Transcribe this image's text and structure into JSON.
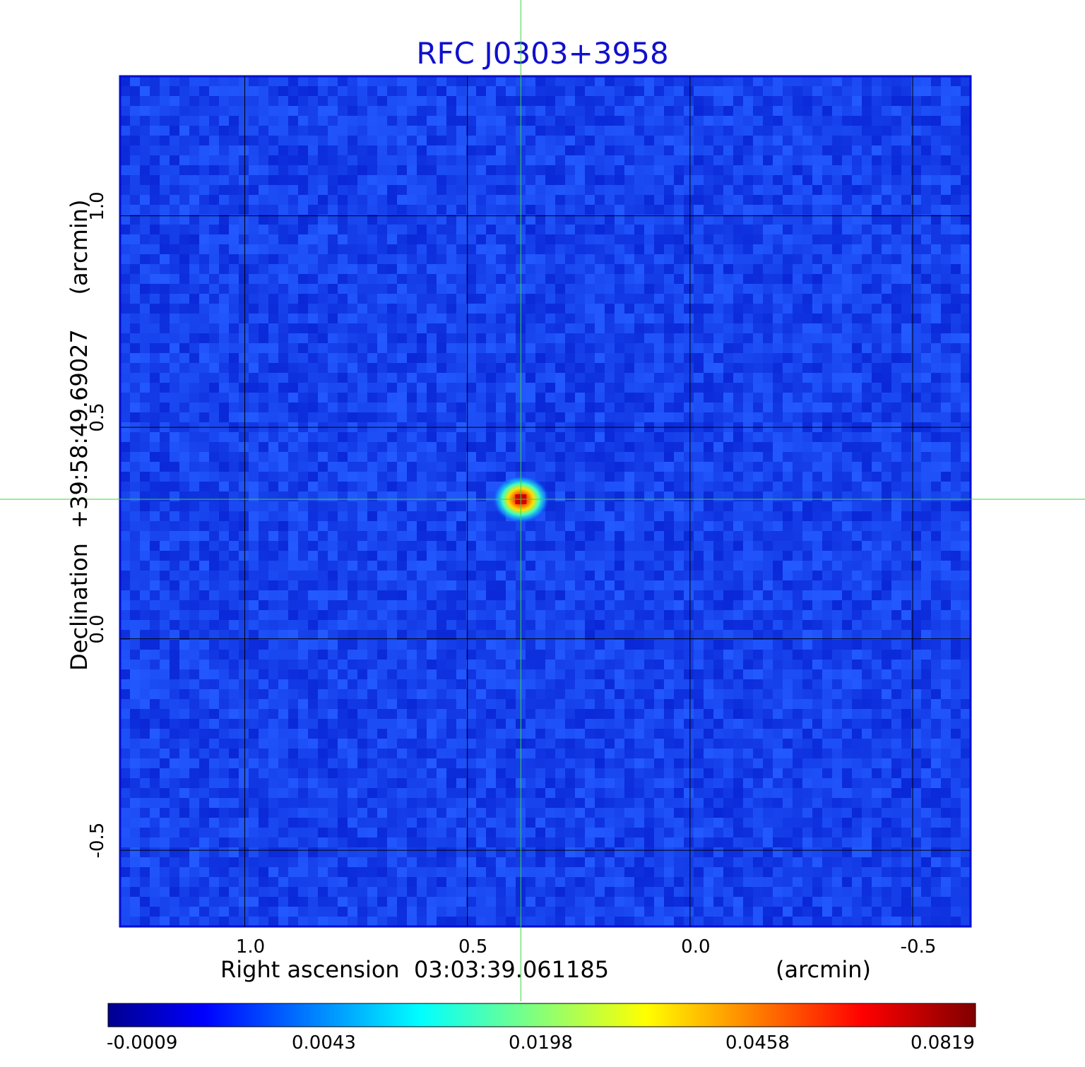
{
  "chart_data": {
    "type": "heatmap",
    "title": "RFC J0303+3958",
    "xlabel": "Right ascension  03:03:39.061185",
    "xunit": "(arcmin)",
    "ylabel": "Declination  +39:58:49.69027",
    "yunit": "(arcmin)",
    "xlim": [
      1.28,
      -0.63
    ],
    "ylim": [
      -0.68,
      1.33
    ],
    "x_ticks": [
      "1.0",
      "0.5",
      "0.0",
      "-0.5"
    ],
    "x_tick_values": [
      1.0,
      0.5,
      0.0,
      -0.5
    ],
    "y_ticks": [
      "-0.5",
      "0.0",
      "0.5",
      "1.0"
    ],
    "y_tick_values": [
      -0.5,
      0.0,
      0.5,
      1.0
    ],
    "grid": true,
    "colormap": "jet",
    "colorbar": {
      "ticks": [
        "-0.0009",
        "0.0043",
        "0.0198",
        "0.0458",
        "0.0819"
      ],
      "min": -0.0009,
      "max": 0.0819
    },
    "source": {
      "x": 0.38,
      "y": 0.33,
      "peak": 0.0819
    },
    "crosshair": {
      "x": 0.38,
      "y": 0.33
    },
    "crosshair_color": "#3cd63c",
    "background_level": -0.0004
  }
}
